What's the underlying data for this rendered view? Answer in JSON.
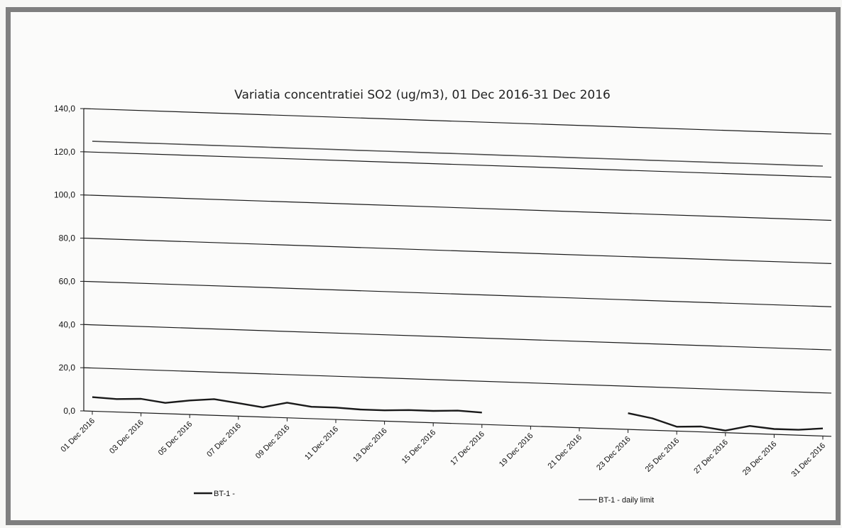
{
  "chart_data": {
    "type": "line",
    "title": "Variatia concentratiei  SO2 (ug/m3),  01 Dec 2016-31 Dec 2016",
    "xlabel": "",
    "ylabel": "",
    "ylim": [
      0,
      140
    ],
    "y_ticks": [
      "0,0",
      "20,0",
      "40,0",
      "60,0",
      "80,0",
      "100,0",
      "120,0",
      "140,0"
    ],
    "x_ticks": [
      "01 Dec 2016",
      "03 Dec 2016",
      "05 Dec 2016",
      "07 Dec 2016",
      "09 Dec 2016",
      "11 Dec 2016",
      "13 Dec 2016",
      "15 Dec 2016",
      "17 Dec 2016",
      "19 Dec 2016",
      "21 Dec 2016",
      "23 Dec 2016",
      "25 Dec 2016",
      "27 Dec 2016",
      "29 Dec 2016",
      "31 Dec 2016"
    ],
    "x": [
      "01 Dec 2016",
      "02 Dec 2016",
      "03 Dec 2016",
      "04 Dec 2016",
      "05 Dec 2016",
      "06 Dec 2016",
      "07 Dec 2016",
      "08 Dec 2016",
      "09 Dec 2016",
      "10 Dec 2016",
      "11 Dec 2016",
      "12 Dec 2016",
      "13 Dec 2016",
      "14 Dec 2016",
      "15 Dec 2016",
      "16 Dec 2016",
      "17 Dec 2016",
      "18 Dec 2016",
      "19 Dec 2016",
      "20 Dec 2016",
      "21 Dec 2016",
      "22 Dec 2016",
      "23 Dec 2016",
      "24 Dec 2016",
      "25 Dec 2016",
      "26 Dec 2016",
      "27 Dec 2016",
      "28 Dec 2016",
      "29 Dec 2016",
      "30 Dec 2016",
      "31 Dec 2016"
    ],
    "grid": true,
    "legend_position": "bottom",
    "series": [
      {
        "name": "BT-1 -",
        "color": "#1a1a1a",
        "values": [
          6.5,
          6.0,
          6.5,
          5.0,
          6.5,
          7.5,
          6.0,
          4.5,
          7.0,
          5.5,
          5.5,
          5.0,
          5.0,
          5.5,
          5.5,
          6.0,
          5.5,
          null,
          null,
          null,
          null,
          null,
          7.5,
          5.5,
          2.0,
          2.5,
          1.0,
          3.5,
          2.5,
          2.5,
          3.5
        ]
      },
      {
        "name": "BT-1 - daily limit",
        "color": "#4d4d4d",
        "values": [
          125,
          125,
          125,
          125,
          125,
          125,
          125,
          125,
          125,
          125,
          125,
          125,
          125,
          125,
          125,
          125,
          125,
          125,
          125,
          125,
          125,
          125,
          125,
          125,
          125,
          125,
          125,
          125,
          125,
          125,
          125
        ]
      }
    ]
  }
}
